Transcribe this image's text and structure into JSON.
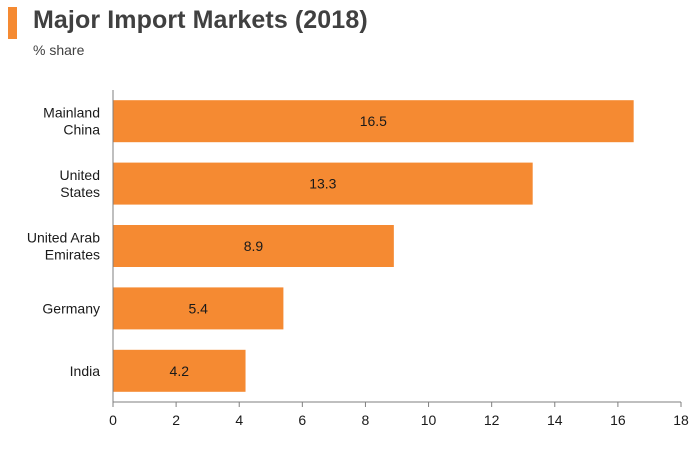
{
  "header": {
    "title": "Major Import Markets (2018)",
    "subtitle": "% share"
  },
  "colors": {
    "accent": "#f58a32",
    "bar": "#f58a32",
    "axis": "#7f7f7f",
    "text": "#1a1a1a"
  },
  "chart_data": {
    "type": "bar",
    "orientation": "horizontal",
    "categories": [
      [
        "Mainland",
        "China"
      ],
      [
        "United",
        "States"
      ],
      [
        "United Arab",
        "Emirates"
      ],
      [
        "Germany"
      ],
      [
        "India"
      ]
    ],
    "values": [
      16.5,
      13.3,
      8.9,
      5.4,
      4.2
    ],
    "data_labels": [
      "16.5",
      "13.3",
      "8.9",
      "5.4",
      "4.2"
    ],
    "title": "Major Import Markets (2018)",
    "subtitle": "% share",
    "xlabel": "",
    "ylabel": "",
    "xlim": [
      0,
      18
    ],
    "xticks": [
      0,
      2,
      4,
      6,
      8,
      10,
      12,
      14,
      16,
      18
    ],
    "grid": false,
    "legend": "none"
  }
}
